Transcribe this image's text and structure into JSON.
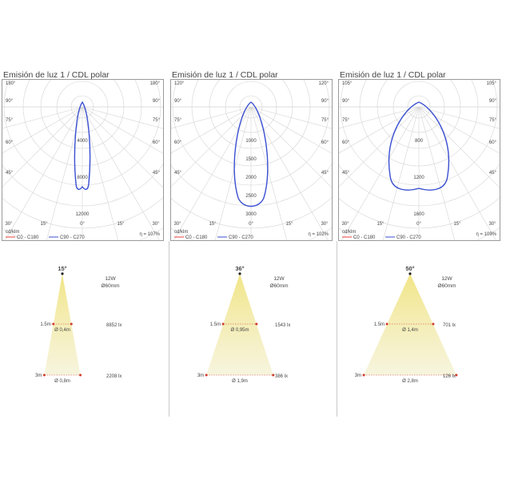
{
  "panels": [
    {
      "title": "Emisión de luz 1 / CDL polar",
      "polar": {
        "unit": "cd/klm",
        "efficiency": "η = 107%",
        "legend": [
          {
            "label": "C0 - C180",
            "color": "#e8403a"
          },
          {
            "label": "C90 - C270",
            "color": "#3a4fd1"
          }
        ],
        "angle_labels_left": [
          "180°",
          "90°",
          "75°",
          "60°",
          "45°"
        ],
        "angle_labels_right": [
          "180°",
          "90°",
          "75°",
          "60°",
          "45°"
        ],
        "bottom_labels": [
          "30°",
          "15°",
          "0°",
          "15°",
          "30°"
        ],
        "radial_labels": [
          "4000",
          "8000",
          "12000"
        ],
        "curve": "narrow"
      },
      "beam": {
        "angle": "15°",
        "power": "12W",
        "diameter": "Ø60mm",
        "distance1": "1.5m",
        "spot1": "Ø 0,4m",
        "lux1": "8852 lx",
        "distance2": "3m",
        "spot2": "Ø 0,8m",
        "lux2": "2208 lx",
        "width_fraction": 0.28
      }
    },
    {
      "title": "Emisión de luz 1 / CDL polar",
      "polar": {
        "unit": "cd/klm",
        "efficiency": "η = 102%",
        "legend": [
          {
            "label": "C0 - C180",
            "color": "#e8403a"
          },
          {
            "label": "C90 - C270",
            "color": "#3a4fd1"
          }
        ],
        "angle_labels_left": [
          "120°",
          "90°",
          "75°",
          "60°",
          "45°"
        ],
        "angle_labels_right": [
          "120°",
          "90°",
          "75°",
          "60°",
          "45°"
        ],
        "bottom_labels": [
          "30°",
          "15°",
          "0°",
          "15°",
          "30°"
        ],
        "radial_labels": [
          "1000",
          "1500",
          "2000",
          "2500",
          "3000"
        ],
        "curve": "medium"
      },
      "beam": {
        "angle": "36°",
        "power": "12W",
        "diameter": "Ø60mm",
        "distance1": "1.5m",
        "spot1": "Ø 0,95m",
        "lux1": "1543 lx",
        "distance2": "3m",
        "spot2": "Ø 1,9m",
        "lux2": "386 lx",
        "width_fraction": 0.65
      }
    },
    {
      "title": "Emisión de luz 1 / CDL polar",
      "polar": {
        "unit": "cd/klm",
        "efficiency": "η = 109%",
        "legend": [
          {
            "label": "C0 - C180",
            "color": "#e8403a"
          },
          {
            "label": "C90 - C270",
            "color": "#3a4fd1"
          }
        ],
        "angle_labels_left": [
          "105°",
          "90°",
          "75°",
          "60°",
          "45°"
        ],
        "angle_labels_right": [
          "105°",
          "90°",
          "75°",
          "60°",
          "45°"
        ],
        "bottom_labels": [
          "30°",
          "15°",
          "0°",
          "15°",
          "30°"
        ],
        "radial_labels": [
          "800",
          "1200",
          "1600"
        ],
        "curve": "wide"
      },
      "beam": {
        "angle": "50°",
        "power": "12W",
        "diameter": "Ø60mm",
        "distance1": "1.5m",
        "spot1": "Ø 1,4m",
        "lux1": "701 lx",
        "distance2": "3m",
        "spot2": "Ø 2,8m",
        "lux2": "126 lx",
        "width_fraction": 0.96
      }
    }
  ],
  "colors": {
    "grid": "#d4d4d4",
    "c90": "#3a4fd1",
    "c0": "#e8403a",
    "beam_light": "#f5f0b8",
    "beam_dot": "#d23a2a"
  }
}
